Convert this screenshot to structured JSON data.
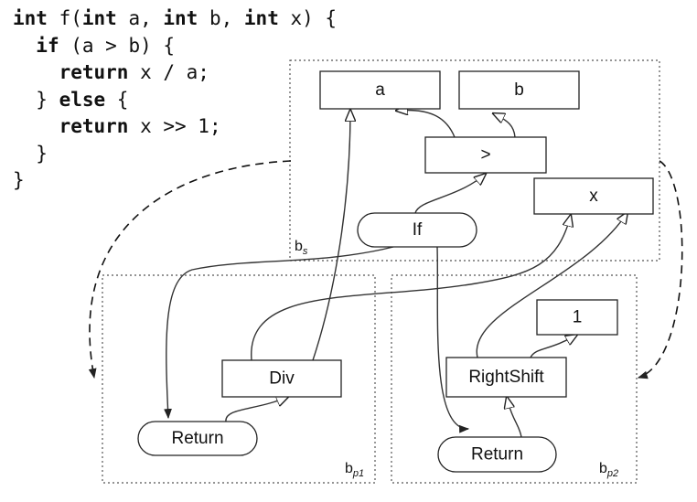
{
  "code": {
    "lines": [
      [
        {
          "t": "int",
          "kw": true
        },
        {
          "t": " f("
        },
        {
          "t": "int",
          "kw": true
        },
        {
          "t": " a, "
        },
        {
          "t": "int",
          "kw": true
        },
        {
          "t": " b, "
        },
        {
          "t": "int",
          "kw": true
        },
        {
          "t": " x) {"
        }
      ],
      [
        {
          "t": "  "
        },
        {
          "t": "if",
          "kw": true
        },
        {
          "t": " (a > b) {"
        }
      ],
      [
        {
          "t": "    "
        },
        {
          "t": "return",
          "kw": true
        },
        {
          "t": " x / a;"
        }
      ],
      [
        {
          "t": "  } "
        },
        {
          "t": "else",
          "kw": true
        },
        {
          "t": " {"
        }
      ],
      [
        {
          "t": "    "
        },
        {
          "t": "return",
          "kw": true
        },
        {
          "t": " x >> 1;"
        }
      ],
      [
        {
          "t": "  }"
        }
      ],
      [
        {
          "t": "}"
        }
      ]
    ]
  },
  "regions": {
    "bs": {
      "label": "b",
      "sub": "s"
    },
    "bp1": {
      "label": "b",
      "sub": "p1"
    },
    "bp2": {
      "label": "b",
      "sub": "p2"
    }
  },
  "nodes": {
    "a": "a",
    "b": "b",
    "gt": ">",
    "x": "x",
    "if": "If",
    "div": "Div",
    "return1": "Return",
    "rightshift": "RightShift",
    "one": "1",
    "return2": "Return"
  }
}
